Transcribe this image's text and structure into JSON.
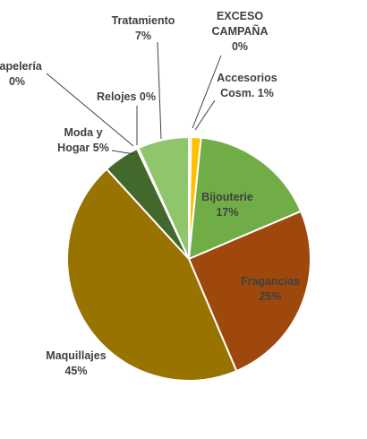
{
  "chart_data": {
    "type": "pie",
    "slices": [
      {
        "name": "EXCESO CAMPAÑA",
        "percent_label": "0%",
        "value": 0.3,
        "color": "#C0C0C0"
      },
      {
        "name": "Accesorios Cosm.",
        "percent_label": "1%",
        "value": 1.3,
        "color": "#FFC000"
      },
      {
        "name": "Bijouterie",
        "percent_label": "17%",
        "value": 17.0,
        "color": "#70AD47"
      },
      {
        "name": "Fragancias",
        "percent_label": "25%",
        "value": 25.0,
        "color": "#9E480E"
      },
      {
        "name": "Maquillajes",
        "percent_label": "45%",
        "value": 44.6,
        "color": "#997300"
      },
      {
        "name": "Moda y Hogar",
        "percent_label": "5%",
        "value": 4.8,
        "color": "#43682B"
      },
      {
        "name": "Papelería",
        "percent_label": "0%",
        "value": 0.1,
        "color": "#A9D18E"
      },
      {
        "name": "Relojes",
        "percent_label": "0%",
        "value": 0.1,
        "color": "#548235"
      },
      {
        "name": "Tratamiento",
        "percent_label": "7%",
        "value": 6.8,
        "color": "#8FC66B"
      }
    ]
  }
}
